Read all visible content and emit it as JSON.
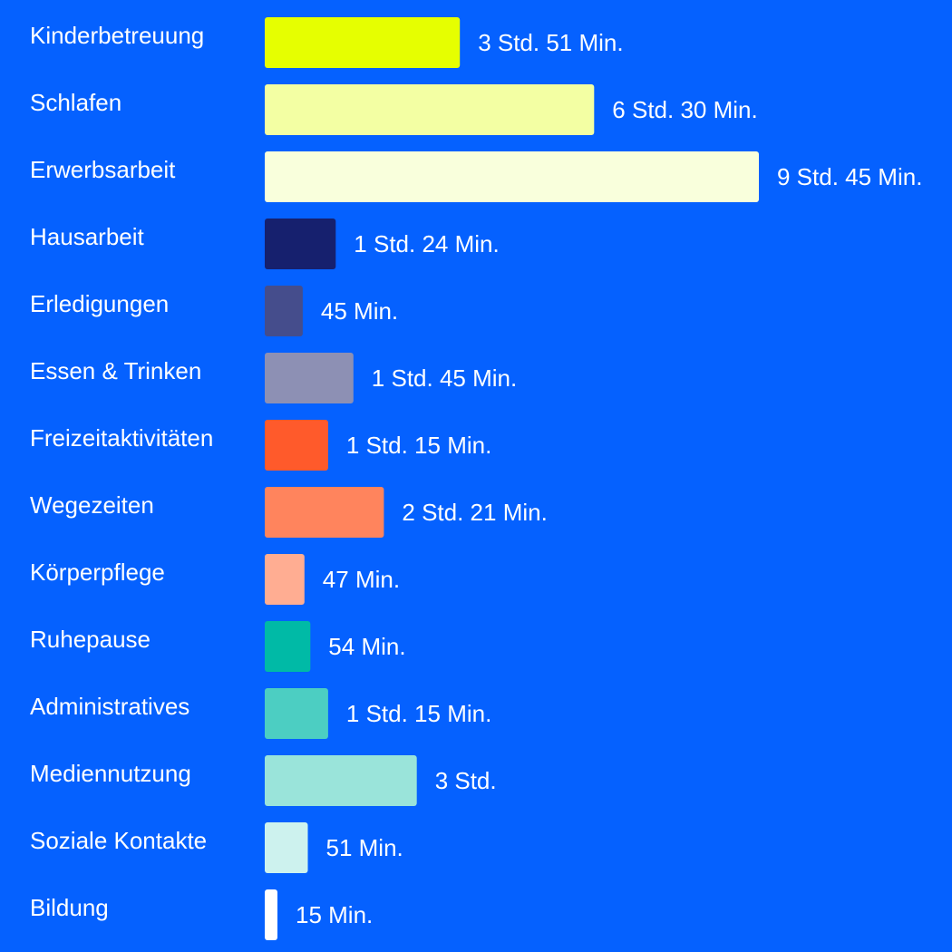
{
  "chart_data": {
    "type": "bar",
    "orientation": "horizontal",
    "title": "",
    "xlabel": "",
    "ylabel": "",
    "unit": "minutes",
    "grid": false,
    "legend": "none",
    "categories": [
      "Kinderbetreuung",
      "Schlafen",
      "Erwerbsarbeit",
      "Hausarbeit",
      "Erledigungen",
      "Essen & Trinken",
      "Freizeitaktivitäten",
      "Wegezeiten",
      "Körperpflege",
      "Ruhepause",
      "Administratives",
      "Mediennutzung",
      "Soziale Kontakte",
      "Bildung"
    ],
    "values": [
      231,
      390,
      585,
      84,
      45,
      105,
      75,
      141,
      47,
      54,
      75,
      180,
      51,
      15
    ],
    "value_labels": [
      "3 Std. 51 Min.",
      "6 Std. 30 Min.",
      "9 Std. 45 Min.",
      "1 Std. 24 Min.",
      "45 Min.",
      "1 Std. 45 Min.",
      "1 Std. 15 Min.",
      "2 Std. 21 Min.",
      "47 Min.",
      "54 Min.",
      "1 Std. 15 Min.",
      "3 Std.",
      "51 Min.",
      "15 Min."
    ],
    "colors": [
      "#e6ff00",
      "#f3ffa3",
      "#f9ffdc",
      "#16206e",
      "#454d8c",
      "#8d90b4",
      "#ff5a2b",
      "#ff845d",
      "#ffad92",
      "#00baa6",
      "#4ccec2",
      "#9ae4da",
      "#cdf2ee",
      "#ffffff"
    ],
    "background_color": "#0561ff",
    "text_color": "#ffffff"
  }
}
